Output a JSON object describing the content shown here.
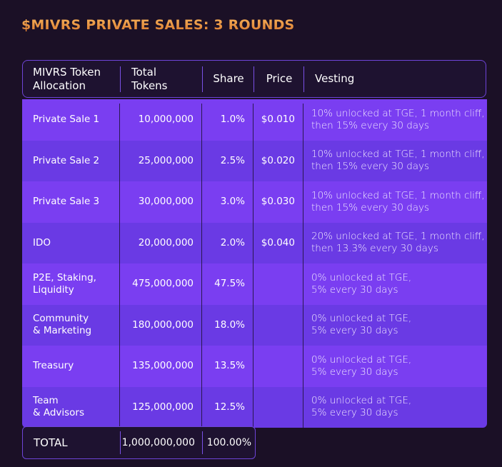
{
  "title": "$MIVRS PRIVATE SALES: 3 ROUNDS",
  "table": {
    "header": [
      "MIVRS Token\nAllocation",
      "Total\nTokens",
      "Share",
      "Price",
      "Vesting"
    ],
    "rows": [
      [
        "Private Sale 1",
        "10,000,000",
        "1.0%",
        "$0.010",
        "10% unlocked at TGE, 1 month cliff,\nthen 15% every 30 days"
      ],
      [
        "Private Sale 2",
        "25,000,000",
        "2.5%",
        "$0.020",
        "10% unlocked at TGE, 1 month cliff,\nthen 15% every 30 days"
      ],
      [
        "Private Sale 3",
        "30,000,000",
        "3.0%",
        "$0.030",
        "10% unlocked at TGE, 1 month cliff,\nthen 15% every 30 days"
      ],
      [
        "IDO",
        "20,000,000",
        "2.0%",
        "$0.040",
        "20% unlocked at TGE, 1 month cliff,\nthen 13.3% every 30 days"
      ],
      [
        "P2E, Staking,\nLiquidity",
        "475,000,000",
        "47.5%",
        null,
        "0% unlocked at TGE,\n5% every 30 days"
      ],
      [
        "Community\n& Marketing",
        "180,000,000",
        "18.0%",
        null,
        "0% unlocked at TGE,\n5% every 30 days"
      ],
      [
        "Treasury",
        "135,000,000",
        "13.5%",
        null,
        "0% unlocked at TGE,\n5% every 30 days"
      ],
      [
        "Team\n& Advisors",
        "125,000,000",
        "12.5%",
        null,
        "0% unlocked at TGE,\n5% every 30 days"
      ]
    ],
    "total": [
      "TOTAL",
      "1,000,000,000",
      "100.00%"
    ]
  }
}
